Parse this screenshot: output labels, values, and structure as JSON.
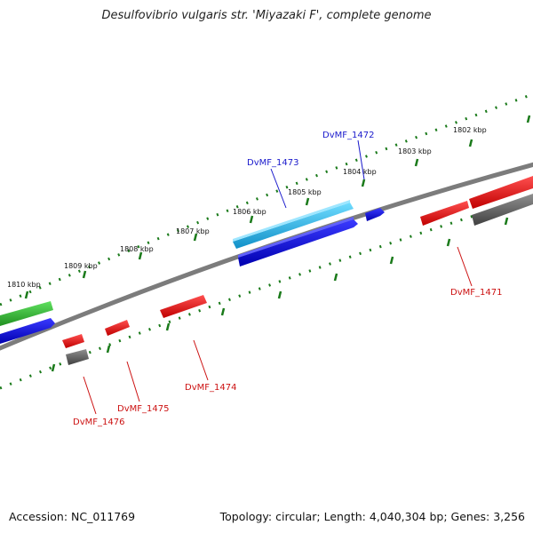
{
  "title": "Desulfovibrio vulgaris str. 'Miyazaki F', complete genome",
  "footer": {
    "accession": "Accession: NC_011769",
    "info": "Topology: circular; Length: 4,040,304 bp; Genes: 3,256"
  },
  "scale_labels": [
    "1802 kbp",
    "1803 kbp",
    "1804 kbp",
    "1805 kbp",
    "1806 kbp",
    "1807 kbp",
    "1808 kbp",
    "1809 kbp",
    "1810 kbp"
  ],
  "gene_labels": [
    {
      "text": "DvMF_1472",
      "color": "#1a1acc"
    },
    {
      "text": "DvMF_1473",
      "color": "#1a1acc"
    },
    {
      "text": "DvMF_1471",
      "color": "#cc1111"
    },
    {
      "text": "DvMF_1474",
      "color": "#cc1111"
    },
    {
      "text": "DvMF_1475",
      "color": "#cc1111"
    },
    {
      "text": "DvMF_1476",
      "color": "#cc1111"
    }
  ],
  "colors": {
    "backbone": "#7a7a7a",
    "tick_green": "#1a7a1a",
    "gene_red": "#e01010",
    "gene_blue": "#1010dd",
    "gene_cyan": "#20b8e8",
    "gene_green": "#30c030",
    "gene_gray": "#606060"
  }
}
